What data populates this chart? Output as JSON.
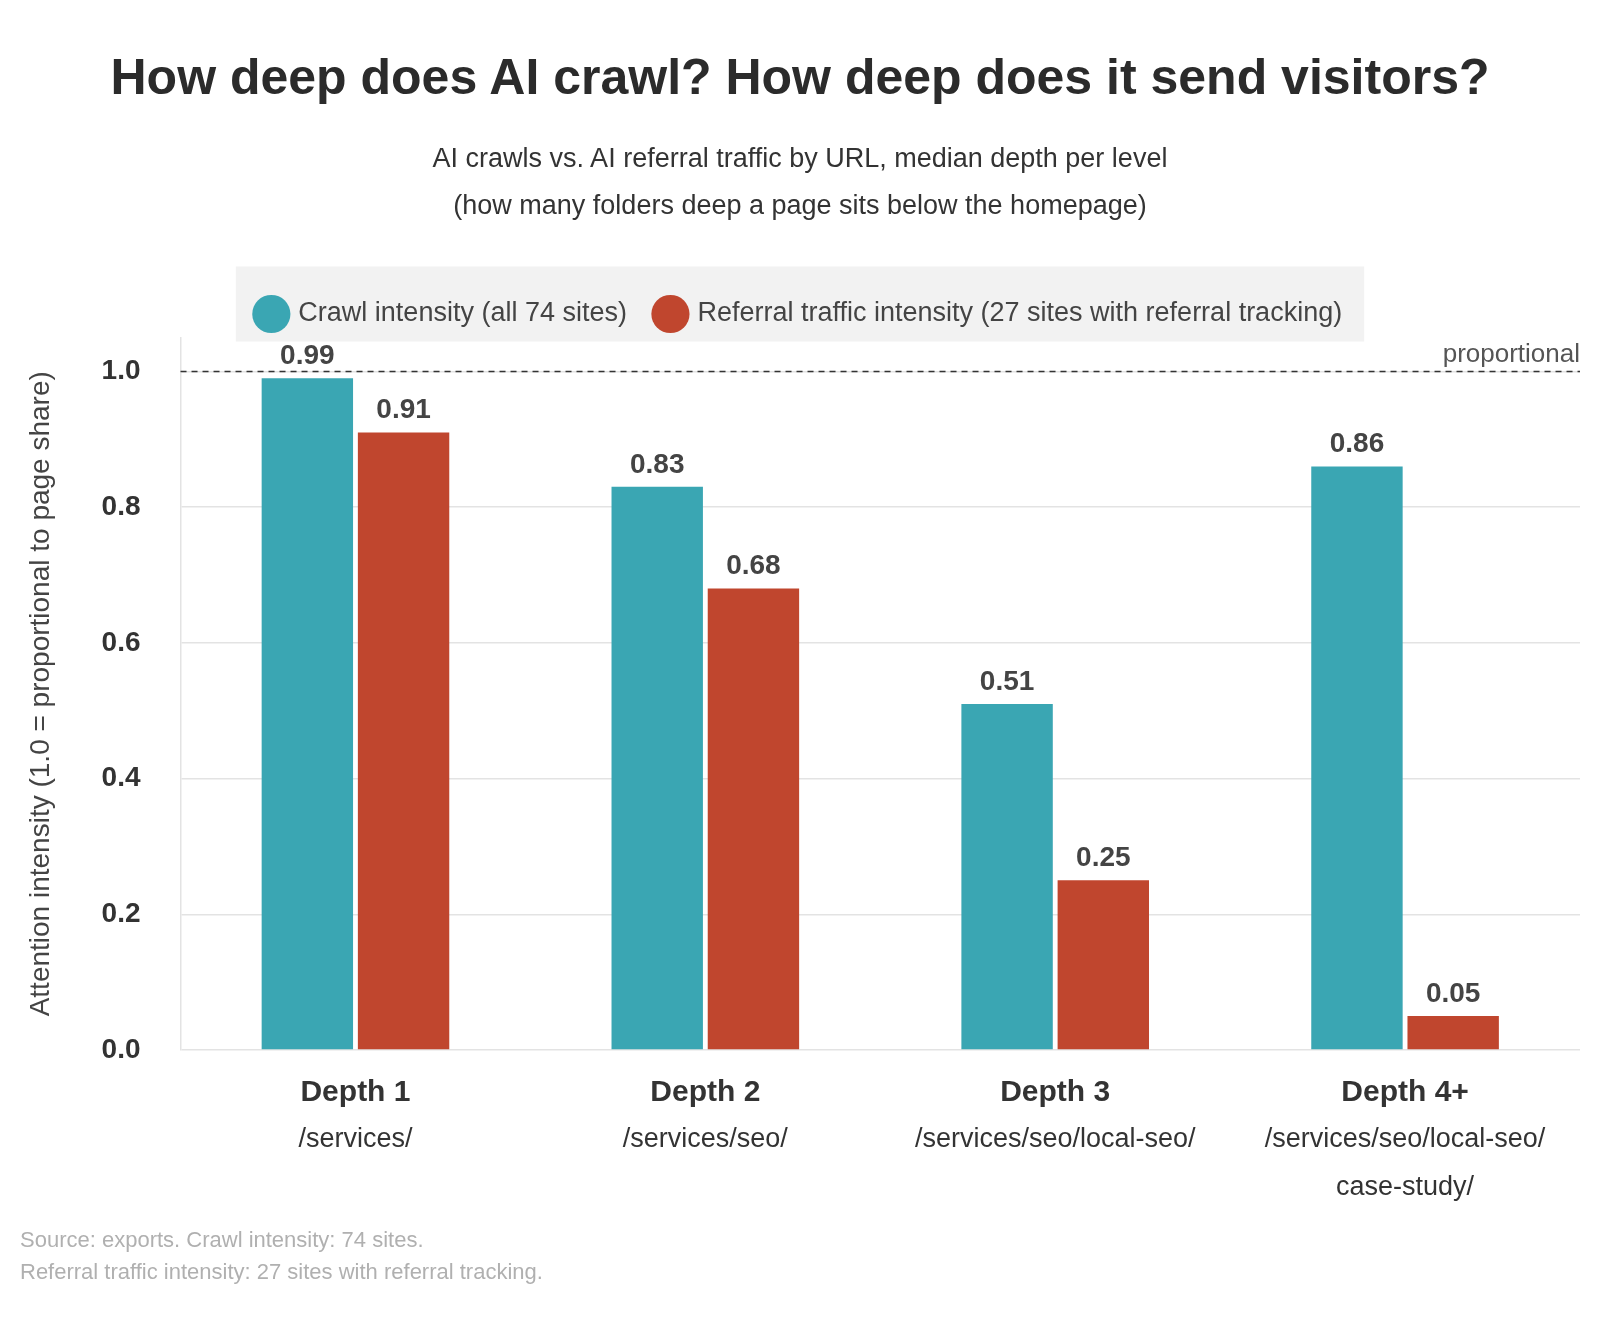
{
  "chart_data": {
    "type": "bar",
    "title": "How deep does AI crawl? How deep does it send visitors?",
    "subtitle": "AI crawls vs. AI referral traffic by URL, median depth per level\n(how many folders deep a page sits below the homepage)",
    "ylabel": "Attention intensity (1.0 = proportional to page share)",
    "categories": [
      "Depth 1\n/services/",
      "Depth 2\n/services/seo/",
      "Depth 3\n/services/seo/local-seo/",
      "Depth 4+\n/services/seo/local-seo/\ncase-study/"
    ],
    "series": [
      {
        "name": "Crawl intensity (all 74 sites)",
        "color": "#3aa6b3",
        "values": [
          0.99,
          0.83,
          0.51,
          0.86
        ]
      },
      {
        "name": "Referral traffic intensity (27 sites with referral tracking)",
        "color": "#c0462e",
        "values": [
          0.91,
          0.68,
          0.25,
          0.05
        ]
      }
    ],
    "ylim": [
      0,
      1.05
    ],
    "yticks": [
      {
        "value": 0,
        "label": "0.0"
      },
      0.2,
      0.4,
      0.6,
      0.8,
      {
        "value": 1,
        "label": "1.0"
      }
    ],
    "grid": "y",
    "legend": "top",
    "data_labels": true,
    "ref_lines": [
      {
        "axis": "y",
        "value": 1,
        "label": "proportional",
        "color": "#333333",
        "line_style": "dashed"
      }
    ],
    "annotations": [
      "Source: exports. Crawl intensity: 74 sites.\nReferral traffic intensity: 27 sites with referral tracking."
    ]
  }
}
